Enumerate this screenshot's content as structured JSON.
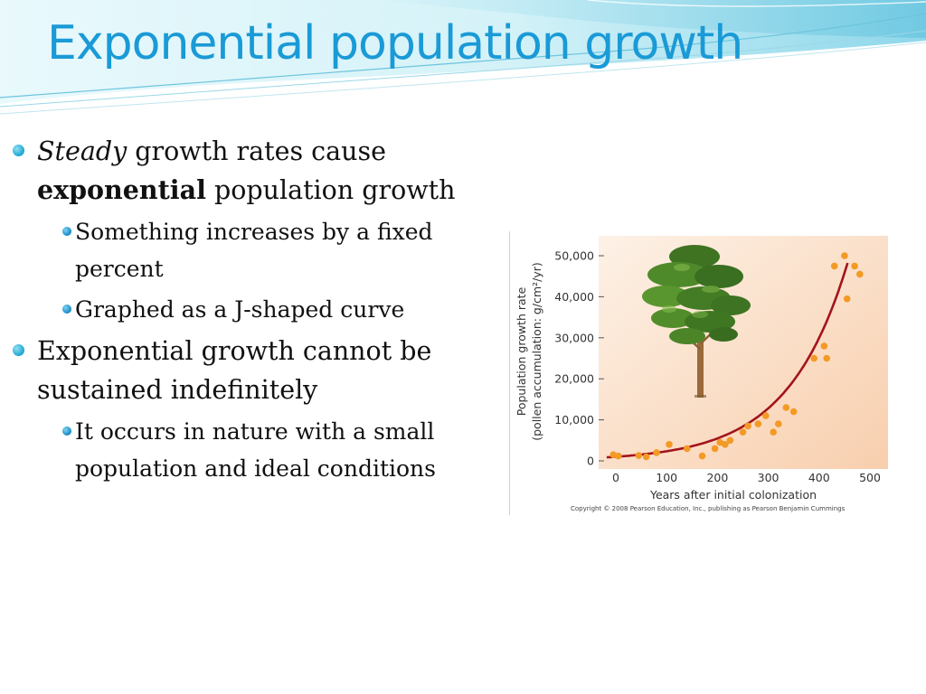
{
  "slide": {
    "title": "Exponential population growth",
    "bullets": [
      {
        "level": 1,
        "parts": [
          {
            "text": "Steady",
            "style": "italic"
          },
          {
            "text": " growth rates cause ",
            "style": "normal"
          },
          {
            "text": "exponential",
            "style": "bold"
          },
          {
            "text": " population growth",
            "style": "normal"
          }
        ]
      },
      {
        "level": 2,
        "parts": [
          {
            "text": "Something increases by a fixed percent",
            "style": "normal"
          }
        ]
      },
      {
        "level": 2,
        "parts": [
          {
            "text": "Graphed as a J-shaped curve",
            "style": "normal"
          }
        ]
      },
      {
        "level": 1,
        "parts": [
          {
            "text": "Exponential growth cannot be sustained indefinitely",
            "style": "normal"
          }
        ]
      },
      {
        "level": 2,
        "parts": [
          {
            "text": "It occurs in nature with a small population and ideal conditions",
            "style": "normal"
          }
        ]
      }
    ]
  },
  "chart_data": {
    "type": "scatter",
    "xlabel": "Years after initial colonization",
    "ylabel_line1": "Population growth rate",
    "ylabel_line2": "(pollen accumulation: g/cm²/yr)",
    "xlim": [
      -20,
      520
    ],
    "ylim": [
      0,
      55000
    ],
    "xticks": [
      0,
      100,
      200,
      300,
      400,
      500
    ],
    "xtick_labels": [
      "0",
      "100",
      "200",
      "300",
      "400",
      "500"
    ],
    "yticks": [
      0,
      10000,
      20000,
      30000,
      40000,
      50000
    ],
    "ytick_labels": [
      "0",
      "10,000",
      "20,000",
      "30,000",
      "40,000",
      "50,000"
    ],
    "copyright": "Copyright © 2008 Pearson Education, Inc., publishing as Pearson Benjamin Cummings",
    "points": {
      "x": [
        -5,
        5,
        45,
        60,
        80,
        105,
        140,
        170,
        195,
        205,
        215,
        225,
        250,
        260,
        280,
        295,
        310,
        320,
        335,
        350,
        390,
        410,
        415,
        430,
        450,
        455,
        470,
        480
      ],
      "y": [
        1500,
        1200,
        1300,
        1000,
        2000,
        4000,
        3000,
        1200,
        3000,
        4500,
        4000,
        5000,
        7000,
        8500,
        9000,
        11000,
        7000,
        9000,
        13000,
        12000,
        25000,
        28000,
        25000,
        47500,
        50000,
        39500,
        47500,
        45500
      ]
    },
    "curve_model": {
      "a": 1000,
      "b": 0.0085,
      "x_end": 458
    },
    "colors": {
      "points": "#f39a25",
      "curve": "#a3141b",
      "background": "#fbd8b8"
    }
  }
}
